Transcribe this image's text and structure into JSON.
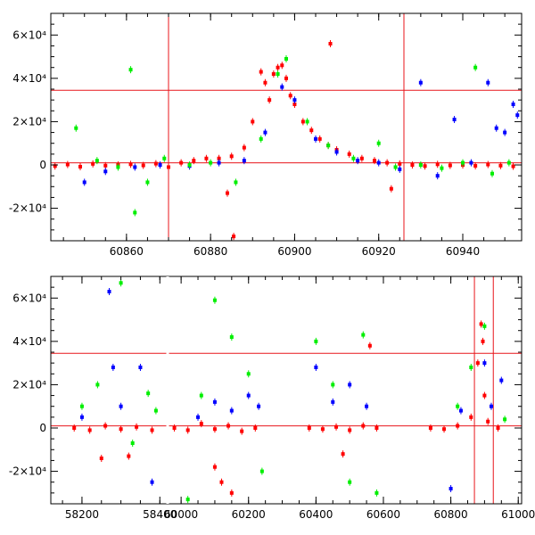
{
  "chart_data": [
    {
      "type": "scatter",
      "title": "",
      "xlabel": "",
      "ylabel": "",
      "xlim": [
        60842,
        60954
      ],
      "ylim": [
        -35000,
        70000
      ],
      "x_ticks": [
        60860,
        60880,
        60900,
        60920,
        60940
      ],
      "x_tick_labels": [
        "60860",
        "60880",
        "60900",
        "60920",
        "60940"
      ],
      "y_ticks": [
        -20000,
        0,
        20000,
        40000,
        60000
      ],
      "y_tick_labels": [
        "-2×10⁴",
        "0",
        "2×10⁴",
        "4×10⁴",
        "6×10⁴"
      ],
      "h_lines": [
        34500,
        1000
      ],
      "v_lines": [
        60870,
        60926
      ],
      "series": [
        {
          "color": "#ff0000",
          "x": [
            60843,
            60846,
            60849,
            60852,
            60855,
            60858,
            60861,
            60864,
            60867,
            60870,
            60873,
            60876,
            60879,
            60882,
            60885,
            60888,
            60890,
            60892,
            60893,
            60894,
            60895,
            60896,
            60897,
            60898,
            60899,
            60900,
            60902,
            60904,
            60906,
            60908,
            60910,
            60913,
            60916,
            60919,
            60922,
            60925,
            60928,
            60931,
            60934,
            60937,
            60940,
            60943,
            60946,
            60949,
            60952,
            60908.5,
            60884,
            60885.5,
            60923
          ],
          "y": [
            -500,
            200,
            -800,
            500,
            -300,
            0,
            300,
            -200,
            600,
            -1000,
            1000,
            2000,
            3000,
            3000,
            4000,
            8000,
            20000,
            43000,
            38000,
            30000,
            42000,
            45000,
            46000,
            40000,
            32000,
            28000,
            20000,
            16000,
            12000,
            9000,
            7000,
            5000,
            3000,
            2000,
            1000,
            500,
            0,
            -500,
            300,
            -200,
            0,
            -400,
            200,
            -300,
            -600,
            56000,
            -13000,
            -33000,
            -11000
          ]
        },
        {
          "color": "#0000ff",
          "x": [
            60850,
            60855,
            60862,
            60868,
            60875,
            60882,
            60888,
            60893,
            60897,
            60900,
            60905,
            60910,
            60915,
            60920,
            60925,
            60930,
            60934,
            60938,
            60942,
            60946,
            60948,
            60950,
            60952,
            60953
          ],
          "y": [
            -8000,
            -3000,
            -1000,
            0,
            -500,
            1000,
            2000,
            15000,
            36000,
            30000,
            12000,
            6000,
            2000,
            1000,
            -2000,
            38000,
            -5000,
            21000,
            1000,
            38000,
            17000,
            15000,
            28000,
            23000
          ]
        },
        {
          "color": "#00ee00",
          "x": [
            60848,
            60853,
            60858,
            60861,
            60862,
            60865,
            60869,
            60875,
            60880,
            60886,
            60892,
            60896,
            60898,
            60903,
            60908,
            60914,
            60920,
            60924,
            60930,
            60935,
            60940,
            60943,
            60947,
            60951
          ],
          "y": [
            17000,
            2000,
            -1000,
            44000,
            -22000,
            -8000,
            3000,
            0,
            1000,
            -8000,
            12000,
            42000,
            49000,
            20000,
            9000,
            3000,
            10000,
            -1000,
            0,
            -1500,
            1000,
            45000,
            -4000,
            1000
          ]
        }
      ]
    },
    {
      "type": "scatter",
      "title": "",
      "xlabel": "",
      "ylabel": "",
      "xlim": [
        58120,
        61010
      ],
      "ylim": [
        -35000,
        70000
      ],
      "x_ticks": [
        58200,
        58400,
        60000,
        60200,
        60400,
        60600,
        60800,
        61000
      ],
      "x_tick_labels": [
        "58200",
        "58400",
        "60000",
        "60200",
        "60400",
        "60600",
        "60800",
        "61000"
      ],
      "y_ticks": [
        -20000,
        0,
        20000,
        40000,
        60000
      ],
      "y_tick_labels": [
        "-2×10⁴",
        "0",
        "2×10⁴",
        "4×10⁴",
        "6×10⁴"
      ],
      "h_lines": [
        34500,
        1000
      ],
      "v_lines": [
        60870,
        60926
      ],
      "series": [
        {
          "color": "#ff0000",
          "x": [
            58180,
            58220,
            58260,
            58300,
            58340,
            58380,
            58250,
            58320,
            59980,
            60020,
            60060,
            60100,
            60140,
            60180,
            60220,
            60100,
            60120,
            60150,
            60380,
            60420,
            60460,
            60500,
            60540,
            60580,
            60480,
            60560,
            60740,
            60780,
            60820,
            60860,
            60880,
            60890,
            60895,
            60900,
            60910,
            60940
          ],
          "y": [
            0,
            -1000,
            1000,
            -500,
            500,
            -1000,
            -14000,
            -13000,
            0,
            -1000,
            2000,
            -500,
            1000,
            -1500,
            0,
            -18000,
            -25000,
            -30000,
            0,
            -500,
            500,
            -1000,
            1000,
            0,
            -12000,
            38000,
            0,
            -500,
            1000,
            5000,
            30000,
            48000,
            40000,
            15000,
            3000,
            0
          ]
        },
        {
          "color": "#0000ff",
          "x": [
            58200,
            58270,
            58280,
            58300,
            58350,
            58380,
            60050,
            60100,
            60150,
            60200,
            60230,
            60400,
            60450,
            60500,
            60550,
            60800,
            60830,
            60900,
            60920,
            60950
          ],
          "y": [
            5000,
            63000,
            28000,
            10000,
            28000,
            -25000,
            5000,
            12000,
            8000,
            15000,
            10000,
            28000,
            12000,
            20000,
            10000,
            -28000,
            8000,
            30000,
            10000,
            22000
          ]
        },
        {
          "color": "#00ee00",
          "x": [
            58200,
            58240,
            58300,
            58330,
            58370,
            58390,
            60020,
            60060,
            60100,
            60150,
            60200,
            60240,
            60400,
            60450,
            60500,
            60540,
            60580,
            60820,
            60860,
            60900,
            60960
          ],
          "y": [
            10000,
            20000,
            67000,
            -7000,
            16000,
            8000,
            -33000,
            15000,
            59000,
            42000,
            25000,
            -20000,
            40000,
            20000,
            -25000,
            43000,
            -30000,
            10000,
            28000,
            47000,
            4000
          ]
        }
      ]
    }
  ]
}
